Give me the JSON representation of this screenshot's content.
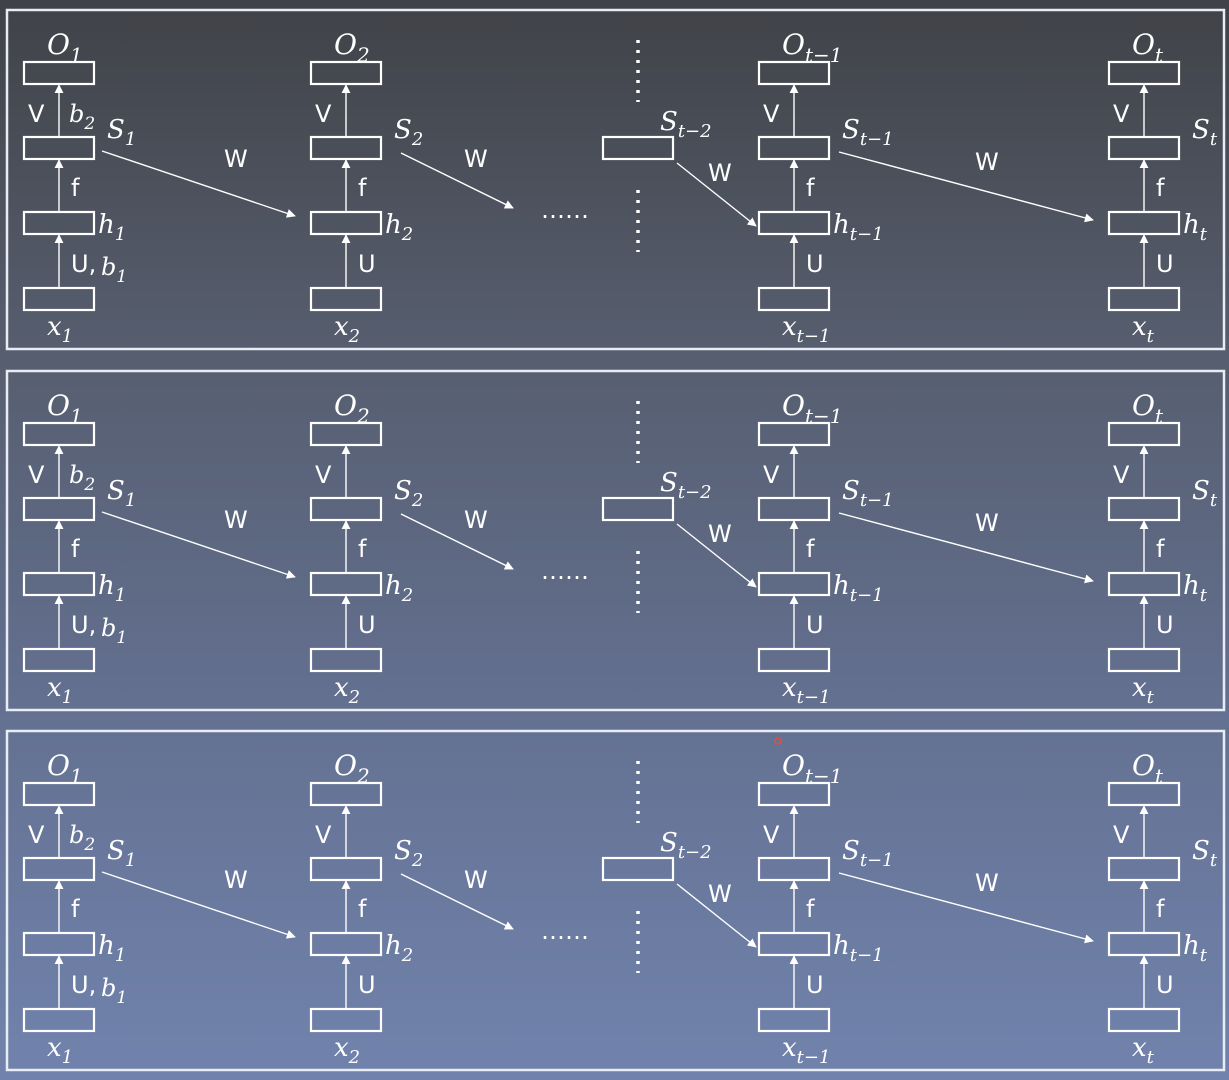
{
  "diagram": {
    "panels": [
      {
        "steps": [
          {
            "out": "O",
            "out_sub": "1",
            "state": "S",
            "state_sub": "1",
            "hidden": "h",
            "hidden_sub": "1",
            "input": "x",
            "input_sub": "1",
            "v_label": "V",
            "b2_base": "b",
            "b2_sub": "2",
            "f_label": "f",
            "u_label": "U,",
            "b1_base": "b",
            "b1_sub": "1"
          },
          {
            "out": "O",
            "out_sub": "2",
            "state": "S",
            "state_sub": "2",
            "hidden": "h",
            "hidden_sub": "2",
            "input": "x",
            "input_sub": "2",
            "v_label": "V",
            "f_label": "f",
            "u_label": "U"
          },
          {
            "out": "O",
            "out_sub": "t−1",
            "state": "S",
            "state_sub": "t−1",
            "hidden": "h",
            "hidden_sub": "t−1",
            "input": "x",
            "input_sub": "t−1",
            "v_label": "V",
            "f_label": "f",
            "u_label": "U"
          },
          {
            "out": "O",
            "out_sub": "t",
            "state": "S",
            "state_sub": "t",
            "hidden": "h",
            "hidden_sub": "t",
            "input": "x",
            "input_sub": "t",
            "v_label": "V",
            "f_label": "f",
            "u_label": "U"
          }
        ],
        "mid_state": "S",
        "mid_state_sub": "t−2",
        "w_labels": [
          "W",
          "W",
          "W",
          "W"
        ],
        "ellipsis": "……"
      },
      {
        "steps": [
          {
            "out": "O",
            "out_sub": "1",
            "state": "S",
            "state_sub": "1",
            "hidden": "h",
            "hidden_sub": "1",
            "input": "x",
            "input_sub": "1",
            "v_label": "V",
            "b2_base": "b",
            "b2_sub": "2",
            "f_label": "f",
            "u_label": "U,",
            "b1_base": "b",
            "b1_sub": "1"
          },
          {
            "out": "O",
            "out_sub": "2",
            "state": "S",
            "state_sub": "2",
            "hidden": "h",
            "hidden_sub": "2",
            "input": "x",
            "input_sub": "2",
            "v_label": "V",
            "f_label": "f",
            "u_label": "U"
          },
          {
            "out": "O",
            "out_sub": "t−1",
            "state": "S",
            "state_sub": "t−1",
            "hidden": "h",
            "hidden_sub": "t−1",
            "input": "x",
            "input_sub": "t−1",
            "v_label": "V",
            "f_label": "f",
            "u_label": "U"
          },
          {
            "out": "O",
            "out_sub": "t",
            "state": "S",
            "state_sub": "t",
            "hidden": "h",
            "hidden_sub": "t",
            "input": "x",
            "input_sub": "t",
            "v_label": "V",
            "f_label": "f",
            "u_label": "U"
          }
        ],
        "mid_state": "S",
        "mid_state_sub": "t−2",
        "w_labels": [
          "W",
          "W",
          "W",
          "W"
        ],
        "ellipsis": "……"
      },
      {
        "steps": [
          {
            "out": "O",
            "out_sub": "1",
            "state": "S",
            "state_sub": "1",
            "hidden": "h",
            "hidden_sub": "1",
            "input": "x",
            "input_sub": "1",
            "v_label": "V",
            "b2_base": "b",
            "b2_sub": "2",
            "f_label": "f",
            "u_label": "U,",
            "b1_base": "b",
            "b1_sub": "1"
          },
          {
            "out": "O",
            "out_sub": "2",
            "state": "S",
            "state_sub": "2",
            "hidden": "h",
            "hidden_sub": "2",
            "input": "x",
            "input_sub": "2",
            "v_label": "V",
            "f_label": "f",
            "u_label": "U"
          },
          {
            "out": "O",
            "out_sub": "t−1",
            "state": "S",
            "state_sub": "t−1",
            "hidden": "h",
            "hidden_sub": "t−1",
            "input": "x",
            "input_sub": "t−1",
            "v_label": "V",
            "f_label": "f",
            "u_label": "U"
          },
          {
            "out": "O",
            "out_sub": "t",
            "state": "S",
            "state_sub": "t",
            "hidden": "h",
            "hidden_sub": "t",
            "input": "x",
            "input_sub": "t",
            "v_label": "V",
            "f_label": "f",
            "u_label": "U"
          }
        ],
        "mid_state": "S",
        "mid_state_sub": "t−2",
        "w_labels": [
          "W",
          "W",
          "W",
          "W"
        ],
        "ellipsis": "……"
      }
    ],
    "colors": {
      "line": "#ffffff",
      "text": "#ffffff",
      "marker": "#e0503c"
    }
  }
}
